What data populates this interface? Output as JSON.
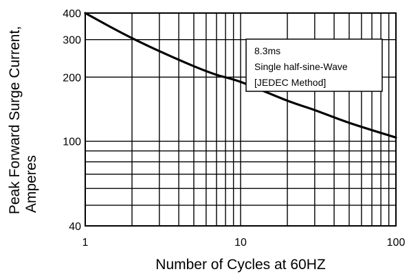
{
  "chart_data": {
    "type": "line",
    "title": "",
    "xlabel": "Number of Cycles at 60HZ",
    "ylabel": [
      "Peak Forward Surge Current,",
      "Amperes"
    ],
    "x_scale": "log",
    "y_scale": "log",
    "xlim": [
      1,
      100
    ],
    "ylim": [
      40,
      400
    ],
    "x_ticks": [
      1,
      10,
      100
    ],
    "x_tick_labels": [
      "1",
      "10",
      "100"
    ],
    "y_ticks": [
      40,
      100,
      200,
      300,
      400
    ],
    "y_tick_labels": [
      "40",
      "100",
      "200",
      "300",
      "400"
    ],
    "x_grid": [
      1,
      2,
      3,
      4,
      5,
      6,
      7,
      8,
      9,
      10,
      20,
      30,
      40,
      50,
      60,
      70,
      80,
      90,
      100
    ],
    "y_grid": [
      40,
      50,
      60,
      70,
      80,
      90,
      100,
      200,
      300,
      400
    ],
    "grid": true,
    "annotation": [
      "8.3ms",
      "Single half-sine-Wave",
      "[JEDEC Method]"
    ],
    "series": [
      {
        "x": [
          1,
          1.5,
          2,
          3,
          5,
          7,
          10,
          20,
          30,
          50,
          100
        ],
        "y": [
          400,
          340,
          305,
          265,
          225,
          205,
          190,
          155,
          140,
          122,
          104
        ]
      }
    ]
  }
}
